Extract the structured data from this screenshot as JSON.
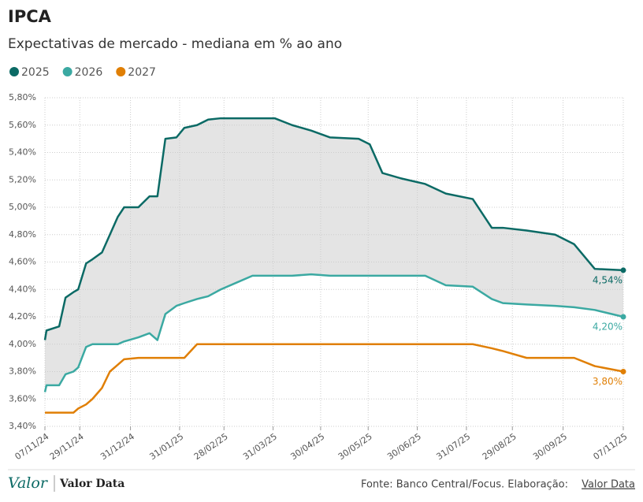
{
  "chart_data": {
    "type": "line",
    "title": "IPCA",
    "subtitle": "Expectativas de mercado - mediana em % ao ano",
    "x": [
      "07/11/24",
      "08/11/24",
      "16/11/24",
      "20/11/24",
      "25/11/24",
      "28/11/24",
      "03/12/24",
      "07/12/24",
      "13/12/24",
      "18/12/24",
      "23/12/24",
      "27/12/24",
      "05/01/25",
      "12/01/25",
      "17/01/25",
      "22/01/25",
      "29/01/25",
      "03/02/25",
      "11/02/25",
      "18/02/25",
      "26/02/25",
      "08/03/25",
      "18/03/25",
      "01/04/25",
      "12/04/25",
      "24/04/25",
      "06/05/25",
      "24/05/25",
      "31/05/25",
      "08/06/25",
      "20/06/25",
      "05/07/25",
      "18/07/25",
      "04/08/25",
      "16/08/25",
      "23/08/25",
      "07/09/25",
      "25/09/25",
      "07/10/25",
      "20/10/25",
      "07/11/25"
    ],
    "series": [
      {
        "name": "2025",
        "color": "#0b6a65",
        "end_label": "4,54%",
        "values": [
          4.03,
          4.1,
          4.13,
          4.34,
          4.38,
          4.4,
          4.59,
          4.62,
          4.67,
          4.8,
          4.93,
          5.0,
          5.0,
          5.08,
          5.08,
          5.5,
          5.51,
          5.58,
          5.6,
          5.64,
          5.65,
          5.65,
          5.65,
          5.65,
          5.6,
          5.56,
          5.51,
          5.5,
          5.46,
          5.25,
          5.21,
          5.17,
          5.1,
          5.06,
          4.85,
          4.85,
          4.83,
          4.8,
          4.73,
          4.55,
          4.54
        ]
      },
      {
        "name": "2026",
        "color": "#3ba9a2",
        "end_label": "4,20%",
        "values": [
          3.65,
          3.7,
          3.7,
          3.78,
          3.8,
          3.83,
          3.98,
          4.0,
          4.0,
          4.0,
          4.0,
          4.02,
          4.05,
          4.08,
          4.03,
          4.22,
          4.28,
          4.3,
          4.33,
          4.35,
          4.4,
          4.45,
          4.5,
          4.5,
          4.5,
          4.51,
          4.5,
          4.5,
          4.5,
          4.5,
          4.5,
          4.5,
          4.43,
          4.42,
          4.33,
          4.3,
          4.29,
          4.28,
          4.27,
          4.25,
          4.2
        ]
      },
      {
        "name": "2027",
        "color": "#e07f05",
        "end_label": "3,80%",
        "values": [
          3.5,
          3.5,
          3.5,
          3.5,
          3.5,
          3.53,
          3.56,
          3.6,
          3.68,
          3.8,
          3.85,
          3.89,
          3.9,
          3.9,
          3.9,
          3.9,
          3.9,
          3.9,
          4.0,
          4.0,
          4.0,
          4.0,
          4.0,
          4.0,
          4.0,
          4.0,
          4.0,
          4.0,
          4.0,
          4.0,
          4.0,
          4.0,
          4.0,
          4.0,
          3.97,
          3.95,
          3.9,
          3.9,
          3.9,
          3.84,
          3.8
        ]
      }
    ],
    "xlim": [
      "07/11/24",
      "07/11/25"
    ],
    "xticks": [
      "07/11/24",
      "29/11/24",
      "31/12/24",
      "31/01/25",
      "28/02/25",
      "31/03/25",
      "30/04/25",
      "30/05/25",
      "30/06/25",
      "31/07/25",
      "29/08/25",
      "30/09/25",
      "07/11/25"
    ],
    "ylim": [
      3.4,
      5.8
    ],
    "yticks": [
      {
        "value": 3.4,
        "label": "3,40%"
      },
      {
        "value": 3.6,
        "label": "3,60%"
      },
      {
        "value": 3.8,
        "label": "3,80%"
      },
      {
        "value": 4.0,
        "label": "4,00%"
      },
      {
        "value": 4.2,
        "label": "4,20%"
      },
      {
        "value": 4.4,
        "label": "4,40%"
      },
      {
        "value": 4.6,
        "label": "4,60%"
      },
      {
        "value": 4.8,
        "label": "4,80%"
      },
      {
        "value": 5.0,
        "label": "5,00%"
      },
      {
        "value": 5.2,
        "label": "5,20%"
      },
      {
        "value": 5.4,
        "label": "5,40%"
      },
      {
        "value": 5.6,
        "label": "5,60%"
      },
      {
        "value": 5.8,
        "label": "5,80%"
      }
    ],
    "grid": true
  },
  "footer": {
    "logo": "Valor",
    "logo_sub": "Valor Data",
    "source": "Fonte: Banco Central/Focus. Elaboração:",
    "source_link": "Valor Data"
  }
}
